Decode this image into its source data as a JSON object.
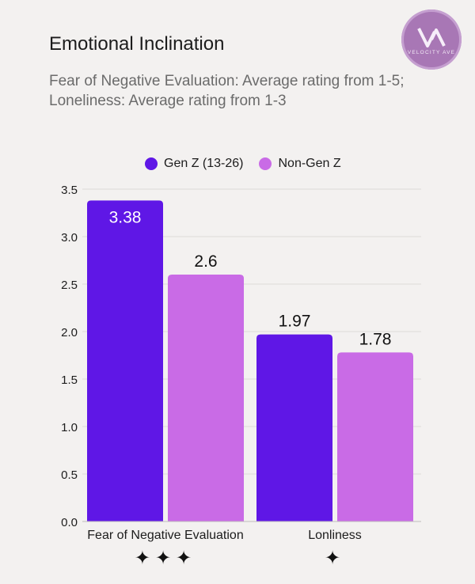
{
  "header": {
    "title": "Emotional Inclination",
    "subtitle": "Fear of Negative Evaluation: Average rating from 1-5; Loneliness: Average rating from 1-3"
  },
  "logo": {
    "text": "VELOCITY AVE"
  },
  "colors": {
    "background": "#f3f1f0",
    "gen_z": "#5f17e6",
    "non_gen_z": "#c96be6",
    "logo": "#a877b5"
  },
  "chart_data": {
    "type": "bar",
    "categories": [
      "Fear of Negative Evaluation",
      "Lonliness"
    ],
    "series": [
      {
        "name": "Gen Z (13-26)",
        "values": [
          3.38,
          1.97
        ],
        "labels": [
          "3.38",
          "1.97"
        ]
      },
      {
        "name": "Non-Gen Z",
        "values": [
          2.6,
          1.78
        ],
        "labels": [
          "2.6",
          "1.78"
        ]
      }
    ],
    "ylim": [
      0,
      3.5
    ],
    "yticks": [
      "0.0",
      "0.5",
      "1.0",
      "1.5",
      "2.0",
      "2.5",
      "3.0",
      "3.5"
    ],
    "grid": true,
    "legend": "top",
    "significance": [
      "✦✦✦",
      "✦"
    ]
  }
}
